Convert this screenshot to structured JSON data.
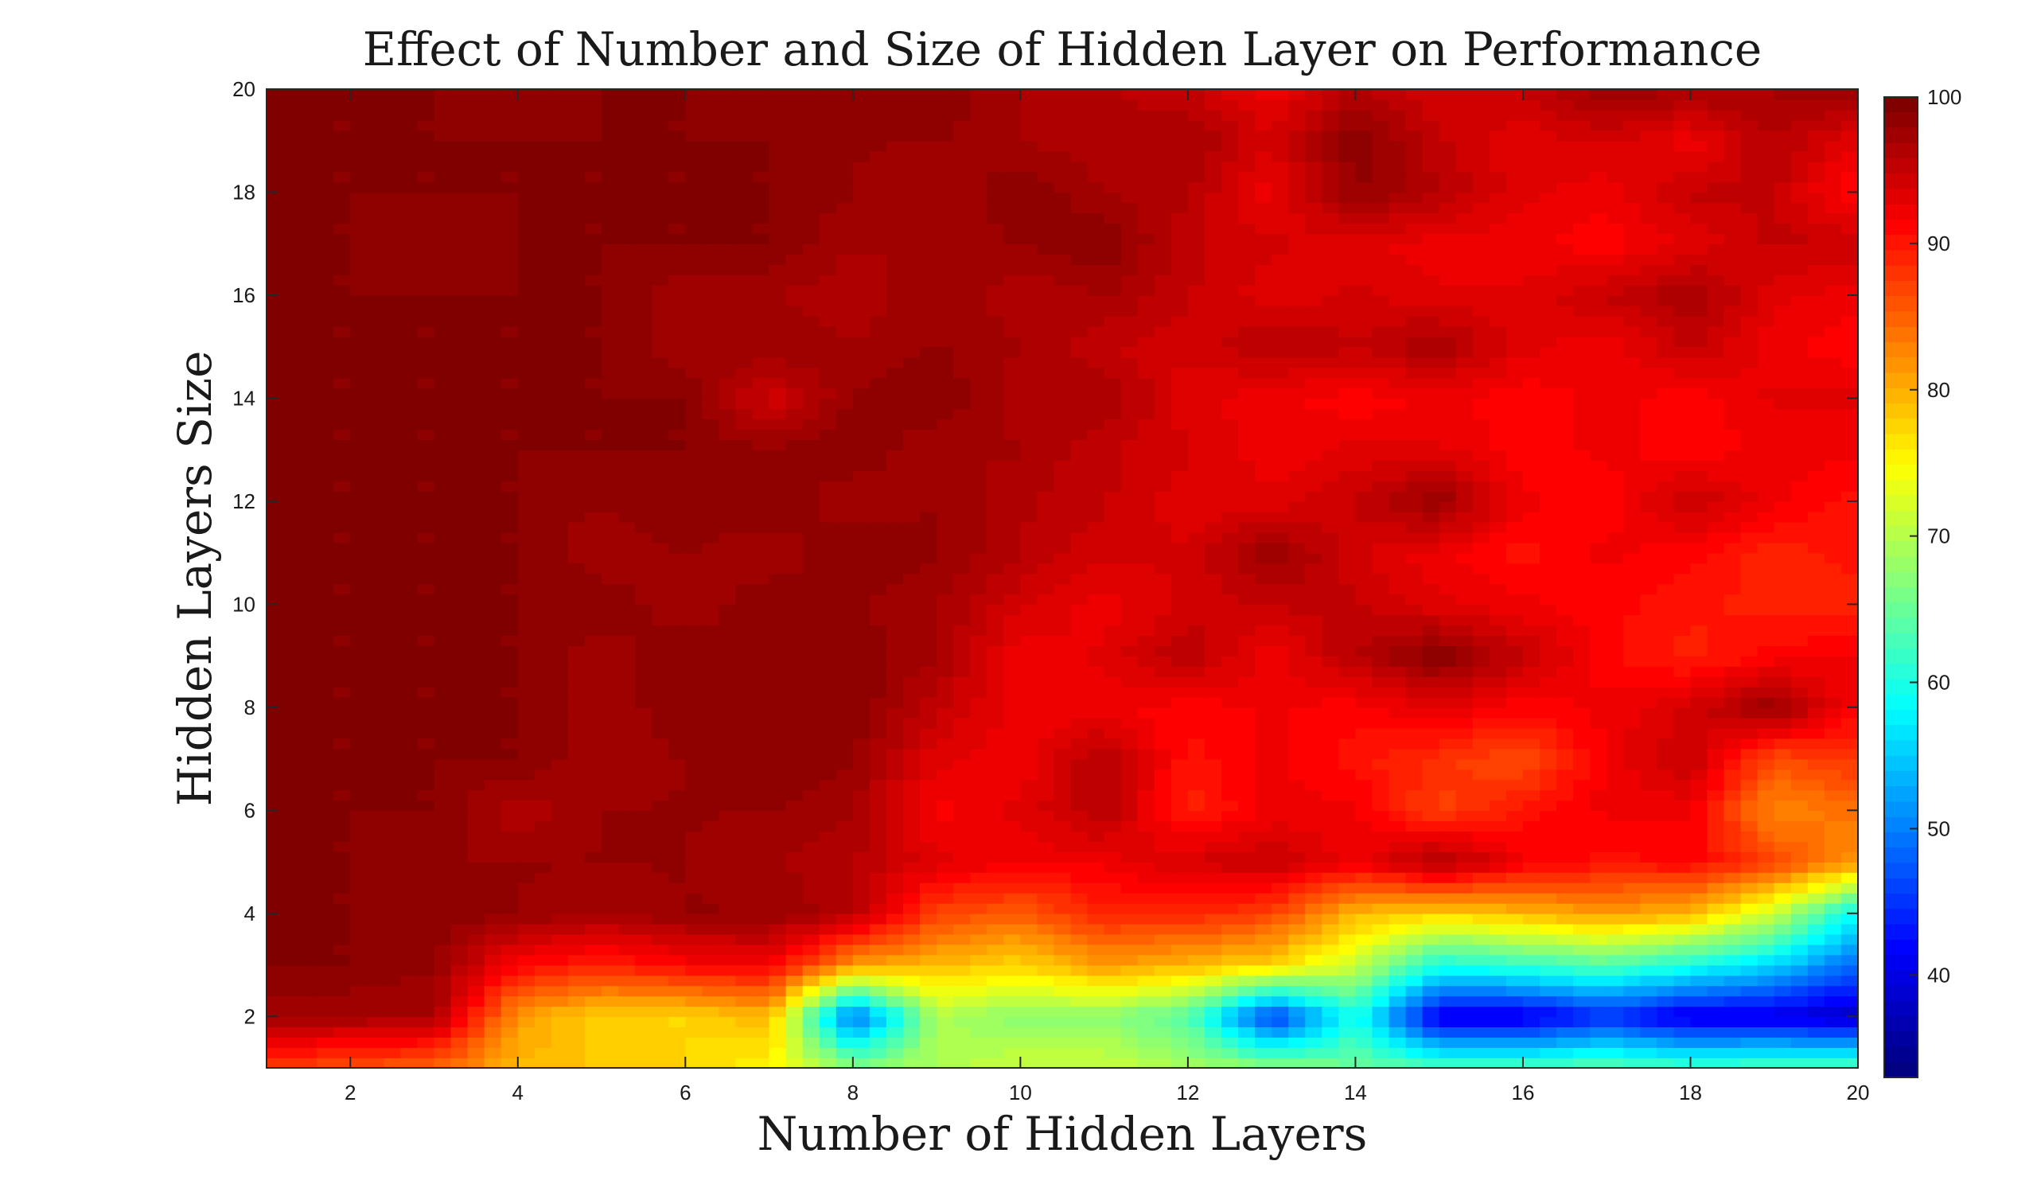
{
  "chart_data": {
    "type": "heatmap",
    "subtype": "filled-contour",
    "title": "Effect of Number and Size of Hidden Layer on Performance",
    "xlabel": "Number of Hidden Layers",
    "ylabel": "Hidden Layers Size",
    "xlim": [
      1,
      20
    ],
    "ylim": [
      1,
      20
    ],
    "xticks": [
      2,
      4,
      6,
      8,
      10,
      12,
      14,
      16,
      18,
      20
    ],
    "yticks": [
      2,
      4,
      6,
      8,
      10,
      12,
      14,
      16,
      18,
      20
    ],
    "colormap": "jet",
    "clim": [
      33,
      100
    ],
    "colorbar_ticks": [
      40,
      50,
      60,
      70,
      80,
      90,
      100
    ],
    "grid": false,
    "x": [
      1,
      2,
      3,
      4,
      5,
      6,
      7,
      8,
      9,
      10,
      11,
      12,
      13,
      14,
      15,
      16,
      17,
      18,
      19,
      20
    ],
    "y": [
      1,
      2,
      3,
      4,
      5,
      6,
      7,
      8,
      9,
      10,
      11,
      12,
      13,
      14,
      15,
      16,
      17,
      18,
      19,
      20
    ],
    "z_rows_note": "z[i][j] = accuracy (%) at hidden layer size y[i], number of hidden layers x[j]",
    "z": [
      [
        88,
        87,
        85,
        80,
        79,
        78,
        76,
        68,
        70,
        72,
        72,
        70,
        68,
        66,
        64,
        64,
        65,
        63,
        64,
        64
      ],
      [
        98,
        98,
        98,
        82,
        78,
        78,
        80,
        48,
        70,
        68,
        68,
        64,
        45,
        60,
        40,
        40,
        44,
        40,
        40,
        38
      ],
      [
        100,
        100,
        99,
        92,
        90,
        92,
        93,
        82,
        80,
        78,
        82,
        80,
        78,
        72,
        60,
        62,
        64,
        60,
        56,
        48
      ],
      [
        100,
        100,
        100,
        99,
        98,
        99,
        99,
        97,
        88,
        86,
        90,
        90,
        88,
        80,
        78,
        80,
        82,
        80,
        72,
        58
      ],
      [
        100,
        100,
        99,
        99,
        99,
        99,
        98,
        97,
        94,
        93,
        93,
        95,
        96,
        93,
        98,
        93,
        91,
        92,
        88,
        82
      ],
      [
        100,
        100,
        100,
        97,
        99,
        99,
        99,
        98,
        92,
        94,
        97,
        90,
        93,
        93,
        88,
        91,
        93,
        93,
        83,
        85
      ],
      [
        100,
        100,
        100,
        100,
        98,
        99,
        100,
        99,
        94,
        93,
        97,
        91,
        93,
        91,
        89,
        87,
        93,
        96,
        87,
        89
      ],
      [
        100,
        100,
        100,
        100,
        98,
        100,
        99,
        100,
        96,
        93,
        93,
        92,
        93,
        92,
        94,
        92,
        93,
        95,
        99,
        92
      ],
      [
        100,
        100,
        100,
        100,
        98,
        100,
        99,
        100,
        98,
        93,
        94,
        97,
        93,
        97,
        100,
        96,
        92,
        90,
        92,
        93
      ],
      [
        100,
        100,
        100,
        100,
        100,
        98,
        100,
        99,
        98,
        95,
        93,
        95,
        96,
        96,
        94,
        93,
        92,
        91,
        90,
        90
      ],
      [
        100,
        100,
        100,
        100,
        98,
        99,
        98,
        100,
        99,
        97,
        95,
        95,
        99,
        95,
        93,
        91,
        93,
        92,
        90,
        91
      ],
      [
        100,
        100,
        100,
        100,
        99,
        100,
        100,
        98,
        99,
        97,
        96,
        94,
        94,
        96,
        99,
        93,
        92,
        96,
        93,
        91
      ],
      [
        100,
        100,
        100,
        100,
        100,
        100,
        99,
        100,
        98,
        98,
        96,
        95,
        93,
        94,
        94,
        92,
        93,
        92,
        93,
        93
      ],
      [
        100,
        100,
        100,
        100,
        100,
        100,
        95,
        99,
        100,
        97,
        98,
        94,
        93,
        92,
        93,
        92,
        93,
        92,
        94,
        94
      ],
      [
        100,
        100,
        100,
        100,
        100,
        98,
        99,
        98,
        99,
        98,
        96,
        95,
        97,
        96,
        98,
        94,
        93,
        96,
        93,
        92
      ],
      [
        100,
        100,
        100,
        100,
        100,
        98,
        98,
        97,
        99,
        97,
        98,
        96,
        94,
        95,
        94,
        94,
        96,
        98,
        94,
        93
      ],
      [
        100,
        100,
        99,
        100,
        100,
        100,
        100,
        98,
        98,
        99,
        100,
        96,
        95,
        94,
        93,
        93,
        92,
        94,
        96,
        96
      ],
      [
        100,
        100,
        100,
        100,
        100,
        100,
        100,
        99,
        98,
        100,
        98,
        97,
        93,
        99,
        97,
        94,
        93,
        96,
        96,
        91
      ],
      [
        100,
        100,
        100,
        100,
        100,
        100,
        100,
        99,
        99,
        98,
        97,
        98,
        95,
        100,
        96,
        94,
        95,
        93,
        97,
        94
      ],
      [
        100,
        100,
        100,
        99,
        100,
        100,
        99,
        100,
        100,
        98,
        97,
        96,
        93,
        97,
        95,
        96,
        99,
        98,
        98,
        99
      ]
    ]
  }
}
